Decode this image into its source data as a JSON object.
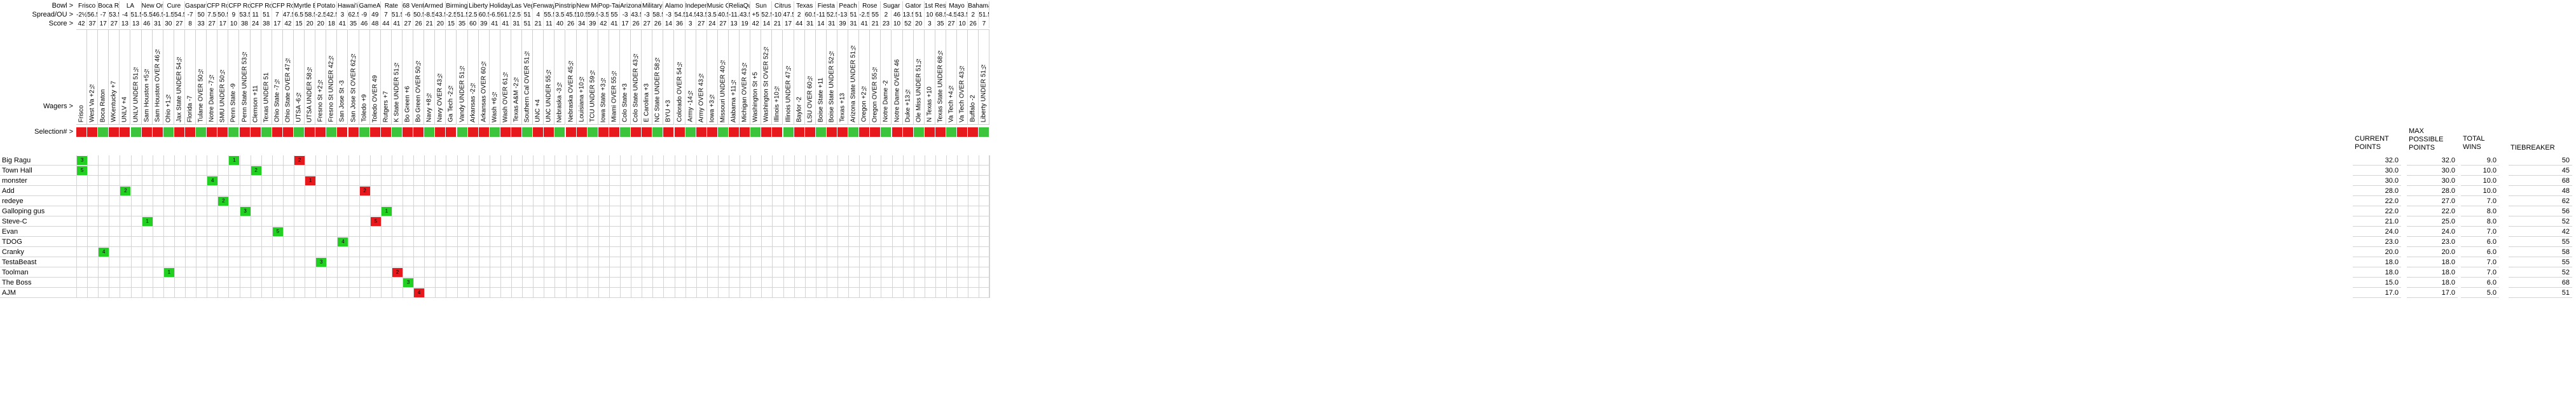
{
  "labels": {
    "bowl": "Bowl >",
    "spread": "Spread/OU >",
    "score": "Score >",
    "wagers": "Wagers >",
    "selection": "Selection# >"
  },
  "standings_headers": {
    "current_points": "CURRENT POINTS",
    "max_possible": "MAX POSSIBLE POINTS",
    "total_wins": "TOTAL WINS",
    "tiebreaker": "TIEBREAKER"
  },
  "colors": {
    "win": "#22d022",
    "loss": "#e8191c"
  },
  "bowls": [
    {
      "name": "Frisco",
      "cols": [
        {
          "spread": "-2½",
          "score": "42",
          "wager": "Frisco"
        },
        {
          "spread": "56.5",
          "score": "37",
          "wager": "West Va +2½"
        }
      ]
    },
    {
      "name": "Boca Raton",
      "cols": [
        {
          "spread": "-7",
          "score": "17",
          "wager": "Boca Raton"
        },
        {
          "spread": "53.5",
          "score": "27",
          "wager": "WKentucky +7"
        }
      ]
    },
    {
      "name": "LA",
      "cols": [
        {
          "spread": "-4",
          "score": "13",
          "wager": "UNLV +4"
        },
        {
          "spread": "51.5",
          "score": "13",
          "wager": "UNLV UNDER 51½"
        }
      ]
    },
    {
      "name": "New Orleans",
      "cols": [
        {
          "spread": "-5.5",
          "score": "46",
          "wager": "Sam Houston +5½"
        },
        {
          "spread": "46.5",
          "score": "31",
          "wager": "Sam Houston OVER 46½"
        }
      ]
    },
    {
      "name": "Cure",
      "cols": [
        {
          "spread": "-1.5",
          "score": "30",
          "wager": "Ohio +1½"
        },
        {
          "spread": "54.5",
          "score": "27",
          "wager": "Jax State UNDER 54½"
        }
      ]
    },
    {
      "name": "Gasparilla",
      "cols": [
        {
          "spread": "-7",
          "score": "8",
          "wager": "Florida -7"
        },
        {
          "spread": "50",
          "score": "33",
          "wager": "Tulane OVER 50½"
        }
      ]
    },
    {
      "name": "CFP Round 1",
      "cols": [
        {
          "spread": "7.5",
          "score": "27",
          "wager": "Notre Dame -7½"
        },
        {
          "spread": "50.5",
          "score": "17",
          "wager": "SMU UNDER 50½"
        }
      ]
    },
    {
      "name": "CFP Round 1",
      "cols": [
        {
          "spread": "9",
          "score": "10",
          "wager": "Penn State -9"
        },
        {
          "spread": "53.5",
          "score": "38",
          "wager": "Penn State UNDER 53½"
        }
      ]
    },
    {
      "name": "CFP Round 1",
      "cols": [
        {
          "spread": "11",
          "score": "24",
          "wager": "Clemson +11"
        },
        {
          "spread": "51",
          "score": "38",
          "wager": "Texas UNDER 51"
        }
      ]
    },
    {
      "name": "CFP Round 1",
      "cols": [
        {
          "spread": "7",
          "score": "17",
          "wager": "Ohio State -7½"
        },
        {
          "spread": "47.5",
          "score": "42",
          "wager": "Ohio State OVER 47½"
        }
      ]
    },
    {
      "name": "Myrtle Beach",
      "cols": [
        {
          "spread": "6.5",
          "score": "15",
          "wager": "UTSA -6½"
        },
        {
          "spread": "58.5",
          "score": "20",
          "wager": "UTSA UNDER 58½"
        }
      ]
    },
    {
      "name": "Potato",
      "cols": [
        {
          "spread": "-2.5",
          "score": "20",
          "wager": "Fresno St +2½"
        },
        {
          "spread": "42.5",
          "score": "18",
          "wager": "Fresno St UNDER 42½"
        }
      ]
    },
    {
      "name": "Hawai'i",
      "cols": [
        {
          "spread": "3",
          "score": "41",
          "wager": "San Jose St -3"
        },
        {
          "spread": "62.5",
          "score": "35",
          "wager": "San Jose St OVER 62½"
        }
      ]
    },
    {
      "name": "GameAbove",
      "cols": [
        {
          "spread": "-9",
          "score": "46",
          "wager": "Toledo +9"
        },
        {
          "spread": "49",
          "score": "48",
          "wager": "Toledo OVER 49"
        }
      ]
    },
    {
      "name": "Rate",
      "cols": [
        {
          "spread": "7",
          "score": "44",
          "wager": "Rutgers +7"
        },
        {
          "spread": "51.5",
          "score": "41",
          "wager": "K State UNDER 51½"
        }
      ]
    },
    {
      "name": "68 Ventures",
      "cols": [
        {
          "spread": "-6",
          "score": "27",
          "wager": "Bo Green +6"
        },
        {
          "spread": "50.5",
          "score": "26",
          "wager": "Bo Green OVER 50½"
        }
      ]
    },
    {
      "name": "Armed Forces",
      "cols": [
        {
          "spread": "-8.5",
          "score": "21",
          "wager": "Navy +8½"
        },
        {
          "spread": "43.5",
          "score": "20",
          "wager": "Navy OVER 43½"
        }
      ]
    },
    {
      "name": "Birmingham",
      "cols": [
        {
          "spread": "-2.5",
          "score": "15",
          "wager": "Ga Tech -2½"
        },
        {
          "spread": "51.5",
          "score": "35",
          "wager": "Vandy UNDER 51½"
        }
      ]
    },
    {
      "name": "Liberty",
      "cols": [
        {
          "spread": "2.5",
          "score": "60",
          "wager": "Arkansas -2½"
        },
        {
          "spread": "60.5",
          "score": "39",
          "wager": "Arkansas OVER 60½"
        }
      ]
    },
    {
      "name": "Holiday",
      "cols": [
        {
          "spread": "-6.5",
          "score": "41",
          "wager": "Wash +6½"
        },
        {
          "spread": "61.5",
          "score": "41",
          "wager": "Wash OVER 61½"
        }
      ]
    },
    {
      "name": "Las Vegas",
      "cols": [
        {
          "spread": "2.5",
          "score": "31",
          "wager": "Texas A&M -2½"
        },
        {
          "spread": "51",
          "score": "51",
          "wager": "Southern Cal OVER 51½"
        }
      ]
    },
    {
      "name": "Fenway",
      "cols": [
        {
          "spread": "4",
          "score": "21",
          "wager": "UNC +4"
        },
        {
          "spread": "55.5",
          "score": "11",
          "wager": "UNC UNDER 55½"
        }
      ]
    },
    {
      "name": "Pinstripe",
      "cols": [
        {
          "spread": "3.5",
          "score": "40",
          "wager": "Nebraska -3½"
        },
        {
          "spread": "45.5",
          "score": "26",
          "wager": "Nebraska OVER 45½"
        }
      ]
    },
    {
      "name": "New Mexico",
      "cols": [
        {
          "spread": "10.5",
          "score": "34",
          "wager": "Louisiana +10½"
        },
        {
          "spread": "59.5",
          "score": "39",
          "wager": "TCU UNDER 59½"
        }
      ]
    },
    {
      "name": "Pop-Tarts",
      "cols": [
        {
          "spread": "-3.5",
          "score": "42",
          "wager": "Iowa State +3½"
        },
        {
          "spread": "55",
          "score": "41",
          "wager": "Miami OVER 55½"
        }
      ]
    },
    {
      "name": "Arizona",
      "cols": [
        {
          "spread": "-3",
          "score": "17",
          "wager": "Colo State +3"
        },
        {
          "spread": "43.5",
          "score": "26",
          "wager": "Colo State UNDER 43½"
        }
      ]
    },
    {
      "name": "Military",
      "cols": [
        {
          "spread": "-3",
          "score": "27",
          "wager": "E Carolina +3"
        },
        {
          "spread": "58.5",
          "score": "26",
          "wager": "NC State UNDER 58½"
        }
      ]
    },
    {
      "name": "Alamo",
      "cols": [
        {
          "spread": "-3",
          "score": "14",
          "wager": "BYU +3"
        },
        {
          "spread": "54.5",
          "score": "36",
          "wager": "Colorado OVER 54½"
        }
      ]
    },
    {
      "name": "Independence",
      "cols": [
        {
          "spread": "14.5",
          "score": "3",
          "wager": "Army -14½"
        },
        {
          "spread": "43.5",
          "score": "27",
          "wager": "Army OVER 43½"
        }
      ]
    },
    {
      "name": "Music City",
      "cols": [
        {
          "spread": "3.5",
          "score": "24",
          "wager": "Iowa +3½"
        },
        {
          "spread": "40.5",
          "score": "27",
          "wager": "Missouri UNDER 40½"
        }
      ]
    },
    {
      "name": "ReliaQuest",
      "cols": [
        {
          "spread": "-11.5",
          "score": "13",
          "wager": "Alabama +11½"
        },
        {
          "spread": "43.5",
          "score": "19",
          "wager": "Michigan OVER 43½"
        }
      ]
    },
    {
      "name": "Sun",
      "cols": [
        {
          "spread": "+5",
          "score": "42",
          "wager": "Washington St +5"
        },
        {
          "spread": "52.5",
          "score": "14",
          "wager": "Washington St OVER 52½"
        }
      ]
    },
    {
      "name": "Citrus",
      "cols": [
        {
          "spread": "-10.5",
          "score": "21",
          "wager": "Illinois +10½"
        },
        {
          "spread": "47.5",
          "score": "17",
          "wager": "Illinois UNDER 47½"
        }
      ]
    },
    {
      "name": "Texas",
      "cols": [
        {
          "spread": "2",
          "score": "44",
          "wager": "Baylor -2"
        },
        {
          "spread": "60.5",
          "score": "31",
          "wager": "LSU OVER 60½"
        }
      ]
    },
    {
      "name": "Fiesta",
      "cols": [
        {
          "spread": "-11",
          "score": "14",
          "wager": "Boise State +11"
        },
        {
          "spread": "52.5",
          "score": "31",
          "wager": "Boise State UNDER 52½"
        }
      ]
    },
    {
      "name": "Peach",
      "cols": [
        {
          "spread": "-13",
          "score": "39",
          "wager": "Texas +13"
        },
        {
          "spread": "51",
          "score": "31",
          "wager": "Arizona State UNDER 51½"
        }
      ]
    },
    {
      "name": "Rose",
      "cols": [
        {
          "spread": "-2.5",
          "score": "41",
          "wager": "Oregon +2½"
        },
        {
          "spread": "55",
          "score": "21",
          "wager": "Oregon OVER 55½"
        }
      ]
    },
    {
      "name": "Sugar",
      "cols": [
        {
          "spread": "2",
          "score": "23",
          "wager": "Notre Dame -2"
        },
        {
          "spread": "46",
          "score": "10",
          "wager": "Notre Dame OVER 46"
        }
      ]
    },
    {
      "name": "Gator",
      "cols": [
        {
          "spread": "13.5",
          "score": "52",
          "wager": "Duke +13½"
        },
        {
          "spread": "51",
          "score": "20",
          "wager": "Ole Miss UNDER 51½"
        }
      ]
    },
    {
      "name": "1st Responder",
      "cols": [
        {
          "spread": "10",
          "score": "3",
          "wager": "N Texas +10"
        },
        {
          "spread": "68.5",
          "score": "35",
          "wager": "Texas State UNDER 68½"
        }
      ]
    },
    {
      "name": "Mayo",
      "cols": [
        {
          "spread": "-4.5",
          "score": "27",
          "wager": "Va Tech +4½"
        },
        {
          "spread": "43.5",
          "score": "10",
          "wager": "Va Tech OVER 43½"
        }
      ]
    },
    {
      "name": "Bahamas",
      "cols": [
        {
          "spread": "2",
          "score": "26",
          "wager": "Buffalo -2"
        },
        {
          "spread": "51.5",
          "score": "7",
          "wager": "Liberty UNDER 51½"
        }
      ]
    }
  ],
  "players": [
    {
      "name": "Big Ragu",
      "current_points": "32.0",
      "max_possible": "32.0",
      "total_wins": "9.0",
      "tiebreaker": "50"
    },
    {
      "name": "Town Hall",
      "current_points": "30.0",
      "max_possible": "30.0",
      "total_wins": "10.0",
      "tiebreaker": "45"
    },
    {
      "name": "monster",
      "current_points": "30.0",
      "max_possible": "30.0",
      "total_wins": "10.0",
      "tiebreaker": "68"
    },
    {
      "name": "Add",
      "current_points": "28.0",
      "max_possible": "28.0",
      "total_wins": "10.0",
      "tiebreaker": "48"
    },
    {
      "name": "redeye",
      "current_points": "22.0",
      "max_possible": "27.0",
      "total_wins": "7.0",
      "tiebreaker": "62"
    },
    {
      "name": "Galloping gus",
      "current_points": "22.0",
      "max_possible": "22.0",
      "total_wins": "8.0",
      "tiebreaker": "56"
    },
    {
      "name": "Steve-C",
      "current_points": "21.0",
      "max_possible": "25.0",
      "total_wins": "8.0",
      "tiebreaker": "52"
    },
    {
      "name": "Evan",
      "current_points": "24.0",
      "max_possible": "24.0",
      "total_wins": "7.0",
      "tiebreaker": "42"
    },
    {
      "name": "TDOG",
      "current_points": "23.0",
      "max_possible": "23.0",
      "total_wins": "6.0",
      "tiebreaker": "55"
    },
    {
      "name": "Cranky",
      "current_points": "20.0",
      "max_possible": "20.0",
      "total_wins": "6.0",
      "tiebreaker": "58"
    },
    {
      "name": "TestaBeast",
      "current_points": "18.0",
      "max_possible": "18.0",
      "total_wins": "7.0",
      "tiebreaker": "55"
    },
    {
      "name": "Toolman",
      "current_points": "18.0",
      "max_possible": "18.0",
      "total_wins": "7.0",
      "tiebreaker": "52"
    },
    {
      "name": "The Boss",
      "current_points": "15.0",
      "max_possible": "18.0",
      "total_wins": "6.0",
      "tiebreaker": "68"
    },
    {
      "name": "AJM",
      "current_points": "17.0",
      "max_possible": "17.0",
      "total_wins": "5.0",
      "tiebreaker": "51"
    }
  ],
  "picks": [
    {
      "player": 0,
      "col": 0,
      "v": "3",
      "c": "win"
    },
    {
      "player": 1,
      "col": 0,
      "v": "5",
      "c": "win"
    },
    {
      "player": 3,
      "col": 4,
      "v": "2",
      "c": "win"
    },
    {
      "player": 6,
      "col": 6,
      "v": "1",
      "c": "win"
    },
    {
      "player": 9,
      "col": 2,
      "v": "4",
      "c": "win"
    },
    {
      "player": 11,
      "col": 8,
      "v": "1",
      "c": "win"
    },
    {
      "player": 2,
      "col": 12,
      "v": "4",
      "c": "win"
    },
    {
      "player": 4,
      "col": 13,
      "v": "2",
      "c": "win"
    },
    {
      "player": 0,
      "col": 14,
      "v": "1",
      "c": "win"
    },
    {
      "player": 5,
      "col": 15,
      "v": "3",
      "c": "win"
    },
    {
      "player": 1,
      "col": 16,
      "v": "2",
      "c": "win"
    },
    {
      "player": 7,
      "col": 18,
      "v": "5",
      "c": "win"
    },
    {
      "player": 0,
      "col": 20,
      "v": "2",
      "c": "red"
    },
    {
      "player": 2,
      "col": 21,
      "v": "1",
      "c": "red"
    },
    {
      "player": 10,
      "col": 22,
      "v": "3",
      "c": "win"
    },
    {
      "player": 8,
      "col": 24,
      "v": "4",
      "c": "win"
    },
    {
      "player": 3,
      "col": 26,
      "v": "2",
      "c": "red"
    },
    {
      "player": 6,
      "col": 27,
      "v": "5",
      "c": "red"
    },
    {
      "player": 5,
      "col": 28,
      "v": "1",
      "c": "win"
    },
    {
      "player": 11,
      "col": 29,
      "v": "2",
      "c": "red"
    },
    {
      "player": 12,
      "col": 30,
      "v": "3",
      "c": "win"
    },
    {
      "player": 13,
      "col": 31,
      "v": "4",
      "c": "red"
    }
  ]
}
